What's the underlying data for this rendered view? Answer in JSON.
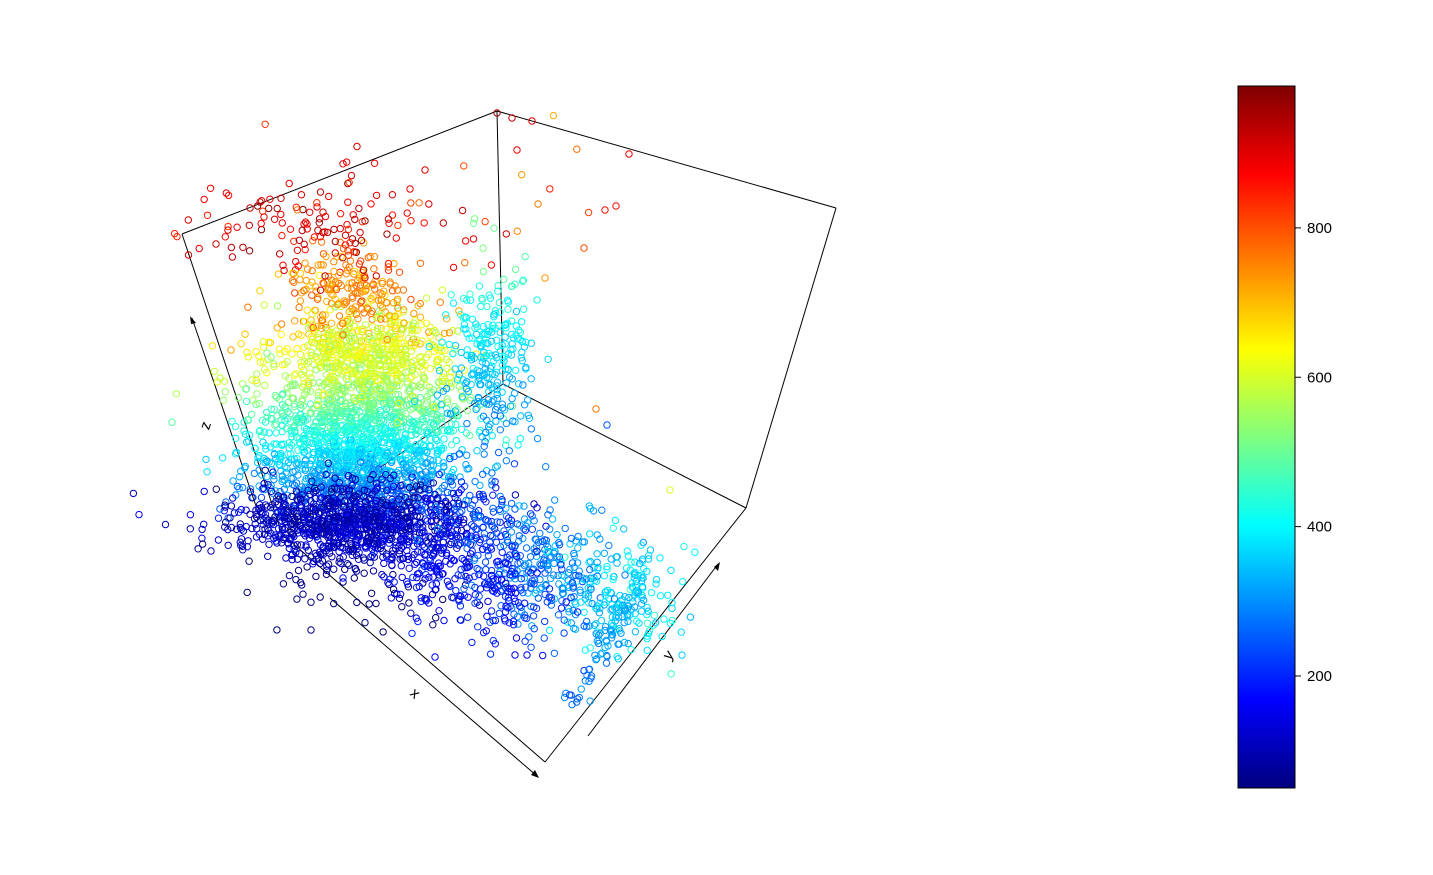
{
  "chart_data": {
    "type": "scatter",
    "title": "",
    "axes": {
      "x": {
        "label": "x"
      },
      "y": {
        "label": "y"
      },
      "z": {
        "label": "z"
      }
    },
    "colorbar": {
      "range": [
        50,
        990
      ],
      "ticks": [
        200,
        400,
        600,
        800
      ],
      "tick_labels": [
        "200",
        "400",
        "600",
        "800"
      ],
      "palette": "jet",
      "colors": [
        "#00007F",
        "#0000FF",
        "#007FFF",
        "#00FFFF",
        "#7FFF7F",
        "#FFFF00",
        "#FF7F00",
        "#FF0000",
        "#7F0000"
      ],
      "placement": "right"
    },
    "marker": "open-circle",
    "grid": false
  }
}
